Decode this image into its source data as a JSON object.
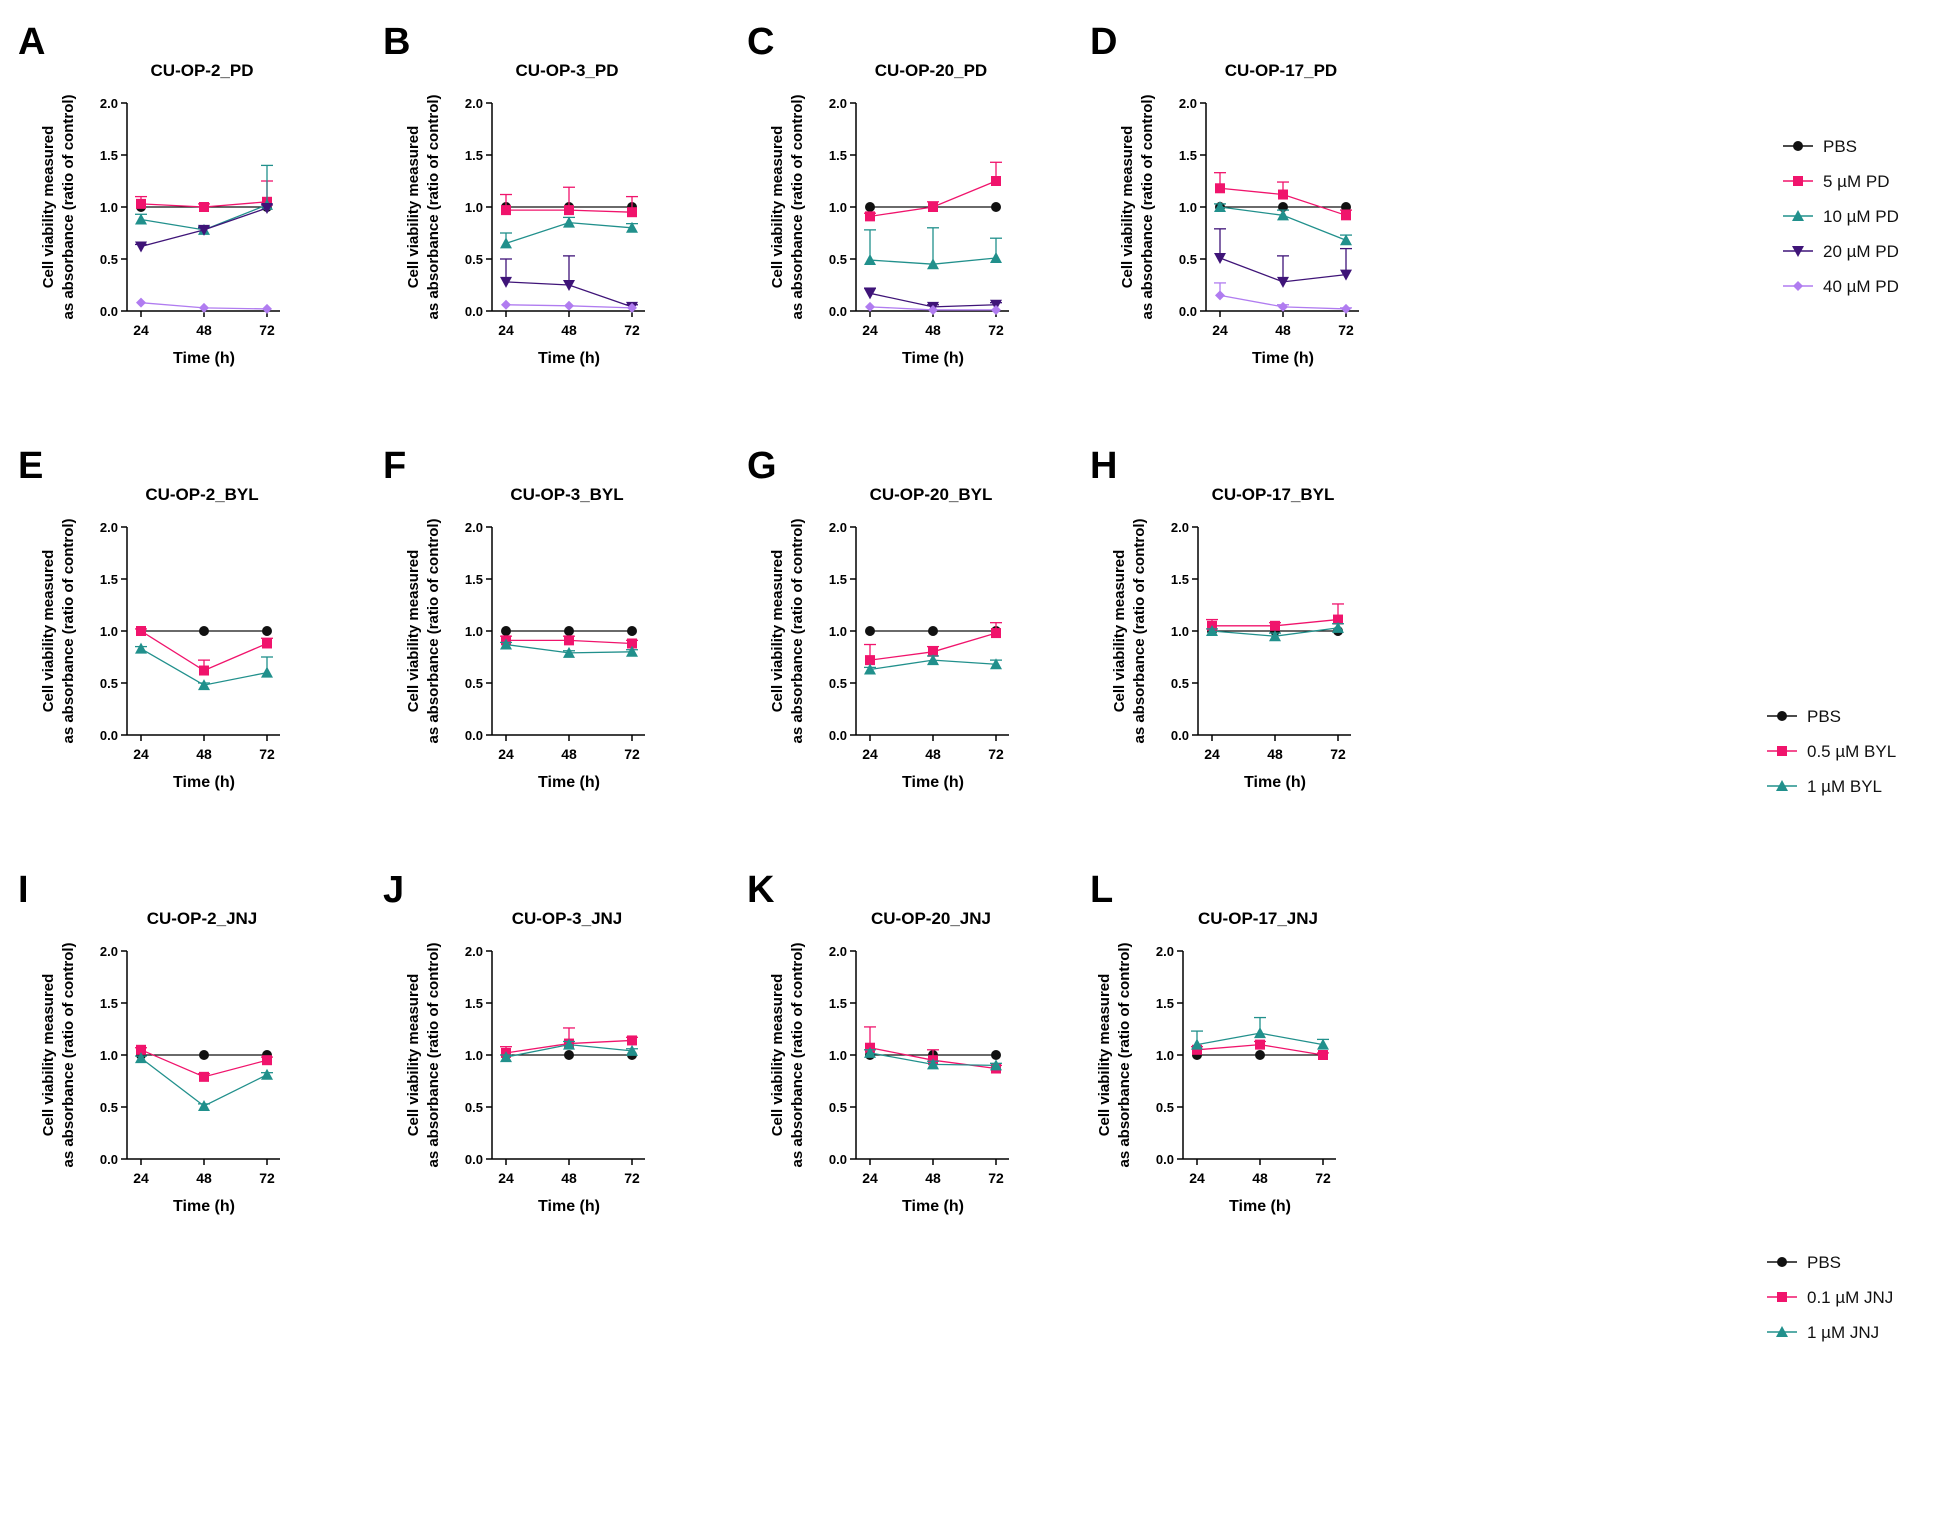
{
  "figure": {
    "y_axis_label_line1": "Cell viability measured",
    "y_axis_label_line2": "as absorbance (ratio of control)",
    "x_axis_label": "Time (h)"
  },
  "colors": {
    "PBS": "#111111",
    "pink": "#f0146c",
    "teal": "#21908c",
    "purple": "#3f1478",
    "lavender": "#b07cf0"
  },
  "legends": [
    {
      "row": 0,
      "items": [
        {
          "label": "PBS",
          "color": "#111111",
          "marker": "circle"
        },
        {
          "label": "5 µM PD",
          "color": "#f0146c",
          "marker": "square"
        },
        {
          "label": "10 µM PD",
          "color": "#21908c",
          "marker": "triangle"
        },
        {
          "label": "20 µM PD",
          "color": "#3f1478",
          "marker": "triangle-down"
        },
        {
          "label": "40 µM PD",
          "color": "#b07cf0",
          "marker": "diamond"
        }
      ]
    },
    {
      "row": 1,
      "items": [
        {
          "label": "PBS",
          "color": "#111111",
          "marker": "circle"
        },
        {
          "label": "0.5 µM BYL",
          "color": "#f0146c",
          "marker": "square"
        },
        {
          "label": "1 µM BYL",
          "color": "#21908c",
          "marker": "triangle"
        }
      ]
    },
    {
      "row": 2,
      "items": [
        {
          "label": "PBS",
          "color": "#111111",
          "marker": "circle"
        },
        {
          "label": "0.1 µM JNJ",
          "color": "#f0146c",
          "marker": "square"
        },
        {
          "label": "1 µM JNJ",
          "color": "#21908c",
          "marker": "triangle"
        }
      ]
    }
  ],
  "chart_data": [
    {
      "panel": "A",
      "type": "line",
      "title": "CU-OP-2_PD",
      "categories": [
        "24",
        "48",
        "72"
      ],
      "xlabel": "Time (h)",
      "ylabel": "Cell viability measured as absorbance (ratio of control)",
      "ylim": [
        0,
        2.0
      ],
      "yticks": [
        "0.0",
        "0.5",
        "1.0",
        "1.5",
        "2.0"
      ],
      "series": [
        {
          "name": "PBS",
          "values": [
            1.0,
            1.0,
            1.0
          ],
          "err": [
            0,
            0,
            0
          ]
        },
        {
          "name": "5 µM PD",
          "values": [
            1.03,
            1.0,
            1.05
          ],
          "err": [
            0.07,
            0.03,
            0.2
          ]
        },
        {
          "name": "10 µM PD",
          "values": [
            0.88,
            0.78,
            1.02
          ],
          "err": [
            0.05,
            0.03,
            0.38
          ]
        },
        {
          "name": "20 µM PD",
          "values": [
            0.62,
            0.78,
            0.99
          ],
          "err": [
            0.02,
            0.02,
            0.03
          ]
        },
        {
          "name": "40 µM PD",
          "values": [
            0.08,
            0.03,
            0.02
          ],
          "err": [
            0,
            0,
            0
          ]
        }
      ]
    },
    {
      "panel": "B",
      "type": "line",
      "title": "CU-OP-3_PD",
      "categories": [
        "24",
        "48",
        "72"
      ],
      "xlabel": "Time (h)",
      "ylabel": "Cell viability measured as absorbance (ratio of control)",
      "ylim": [
        0,
        2.0
      ],
      "yticks": [
        "0.0",
        "0.5",
        "1.0",
        "1.5",
        "2.0"
      ],
      "series": [
        {
          "name": "PBS",
          "values": [
            1.0,
            1.0,
            1.0
          ],
          "err": [
            0,
            0,
            0
          ]
        },
        {
          "name": "5 µM PD",
          "values": [
            0.97,
            0.97,
            0.95
          ],
          "err": [
            0.15,
            0.22,
            0.15
          ]
        },
        {
          "name": "10 µM PD",
          "values": [
            0.65,
            0.85,
            0.8
          ],
          "err": [
            0.1,
            0.05,
            0.04
          ]
        },
        {
          "name": "20 µM PD",
          "values": [
            0.28,
            0.25,
            0.04
          ],
          "err": [
            0.22,
            0.28,
            0.02
          ]
        },
        {
          "name": "40 µM PD",
          "values": [
            0.06,
            0.05,
            0.03
          ],
          "err": [
            0,
            0,
            0
          ]
        }
      ]
    },
    {
      "panel": "C",
      "type": "line",
      "title": "CU-OP-20_PD",
      "categories": [
        "24",
        "48",
        "72"
      ],
      "xlabel": "Time (h)",
      "ylabel": "Cell viability measured as absorbance (ratio of control)",
      "ylim": [
        0,
        2.0
      ],
      "yticks": [
        "0.0",
        "0.5",
        "1.0",
        "1.5",
        "2.0"
      ],
      "series": [
        {
          "name": "PBS",
          "values": [
            1.0,
            1.0,
            1.0
          ],
          "err": [
            0,
            0,
            0
          ]
        },
        {
          "name": "5 µM PD",
          "values": [
            0.91,
            1.0,
            1.25
          ],
          "err": [
            0.03,
            0.05,
            0.18
          ]
        },
        {
          "name": "10 µM PD",
          "values": [
            0.49,
            0.45,
            0.51
          ],
          "err": [
            0.29,
            0.35,
            0.19
          ]
        },
        {
          "name": "20 µM PD",
          "values": [
            0.17,
            0.04,
            0.06
          ],
          "err": [
            0.05,
            0.02,
            0.02
          ]
        },
        {
          "name": "40 µM PD",
          "values": [
            0.04,
            0.01,
            0.01
          ],
          "err": [
            0,
            0,
            0
          ]
        }
      ]
    },
    {
      "panel": "D",
      "type": "line",
      "title": "CU-OP-17_PD",
      "categories": [
        "24",
        "48",
        "72"
      ],
      "xlabel": "Time (h)",
      "ylabel": "Cell viability measured as absorbance (ratio of control)",
      "ylim": [
        0,
        2.0
      ],
      "yticks": [
        "0.0",
        "0.5",
        "1.0",
        "1.5",
        "2.0"
      ],
      "series": [
        {
          "name": "PBS",
          "values": [
            1.0,
            1.0,
            1.0
          ],
          "err": [
            0,
            0,
            0
          ]
        },
        {
          "name": "5 µM PD",
          "values": [
            1.18,
            1.12,
            0.92
          ],
          "err": [
            0.15,
            0.12,
            0.05
          ]
        },
        {
          "name": "10 µM PD",
          "values": [
            1.0,
            0.92,
            0.68
          ],
          "err": [
            0.03,
            0.05,
            0.05
          ]
        },
        {
          "name": "20 µM PD",
          "values": [
            0.51,
            0.28,
            0.35
          ],
          "err": [
            0.28,
            0.25,
            0.25
          ]
        },
        {
          "name": "40 µM PD",
          "values": [
            0.15,
            0.04,
            0.02
          ],
          "err": [
            0.12,
            0.02,
            0.01
          ]
        }
      ]
    },
    {
      "panel": "E",
      "type": "line",
      "title": "CU-OP-2_BYL",
      "categories": [
        "24",
        "48",
        "72"
      ],
      "xlabel": "Time (h)",
      "ylabel": "Cell viability measured as absorbance (ratio of control)",
      "ylim": [
        0,
        2.0
      ],
      "yticks": [
        "0.0",
        "0.5",
        "1.0",
        "1.5",
        "2.0"
      ],
      "series": [
        {
          "name": "PBS",
          "values": [
            1.0,
            1.0,
            1.0
          ],
          "err": [
            0,
            0,
            0
          ]
        },
        {
          "name": "0.5 µM BYL",
          "values": [
            1.0,
            0.62,
            0.88
          ],
          "err": [
            0.02,
            0.1,
            0.05
          ]
        },
        {
          "name": "1 µM BYL",
          "values": [
            0.83,
            0.48,
            0.6
          ],
          "err": [
            0.02,
            0.02,
            0.15
          ]
        }
      ]
    },
    {
      "panel": "F",
      "type": "line",
      "title": "CU-OP-3_BYL",
      "categories": [
        "24",
        "48",
        "72"
      ],
      "xlabel": "Time (h)",
      "ylabel": "Cell viability measured as absorbance (ratio of control)",
      "ylim": [
        0,
        2.0
      ],
      "yticks": [
        "0.0",
        "0.5",
        "1.0",
        "1.5",
        "2.0"
      ],
      "series": [
        {
          "name": "PBS",
          "values": [
            1.0,
            1.0,
            1.0
          ],
          "err": [
            0,
            0,
            0
          ]
        },
        {
          "name": "0.5 µM BYL",
          "values": [
            0.91,
            0.91,
            0.88
          ],
          "err": [
            0.04,
            0.04,
            0.03
          ]
        },
        {
          "name": "1 µM BYL",
          "values": [
            0.87,
            0.79,
            0.8
          ],
          "err": [
            0.02,
            0.02,
            0.02
          ]
        }
      ]
    },
    {
      "panel": "G",
      "type": "line",
      "title": "CU-OP-20_BYL",
      "categories": [
        "24",
        "48",
        "72"
      ],
      "xlabel": "Time (h)",
      "ylabel": "Cell viability measured as absorbance (ratio of control)",
      "ylim": [
        0,
        2.0
      ],
      "yticks": [
        "0.0",
        "0.5",
        "1.0",
        "1.5",
        "2.0"
      ],
      "series": [
        {
          "name": "PBS",
          "values": [
            1.0,
            1.0,
            1.0
          ],
          "err": [
            0,
            0,
            0
          ]
        },
        {
          "name": "0.5 µM BYL",
          "values": [
            0.72,
            0.8,
            0.98
          ],
          "err": [
            0.15,
            0.05,
            0.1
          ]
        },
        {
          "name": "1 µM BYL",
          "values": [
            0.63,
            0.72,
            0.68
          ],
          "err": [
            0.02,
            0.04,
            0.04
          ]
        }
      ]
    },
    {
      "panel": "H",
      "type": "line",
      "title": "CU-OP-17_BYL",
      "categories": [
        "24",
        "48",
        "72"
      ],
      "xlabel": "Time (h)",
      "ylabel": "Cell viability measured as absorbance (ratio of control)",
      "ylim": [
        0,
        2.0
      ],
      "yticks": [
        "0.0",
        "0.5",
        "1.0",
        "1.5",
        "2.0"
      ],
      "series": [
        {
          "name": "PBS",
          "values": [
            1.0,
            1.0,
            1.0
          ],
          "err": [
            0,
            0,
            0
          ]
        },
        {
          "name": "0.5 µM BYL",
          "values": [
            1.05,
            1.05,
            1.11
          ],
          "err": [
            0.06,
            0.03,
            0.15
          ]
        },
        {
          "name": "1 µM BYL",
          "values": [
            1.0,
            0.95,
            1.03
          ],
          "err": [
            0.02,
            0.03,
            0.04
          ]
        }
      ]
    },
    {
      "panel": "I",
      "type": "line",
      "title": "CU-OP-2_JNJ",
      "categories": [
        "24",
        "48",
        "72"
      ],
      "xlabel": "Time (h)",
      "ylabel": "Cell viability measured as absorbance (ratio of control)",
      "ylim": [
        0,
        2.0
      ],
      "yticks": [
        "0.0",
        "0.5",
        "1.0",
        "1.5",
        "2.0"
      ],
      "series": [
        {
          "name": "PBS",
          "values": [
            1.0,
            1.0,
            1.0
          ],
          "err": [
            0,
            0,
            0
          ]
        },
        {
          "name": "0.1 µM JNJ",
          "values": [
            1.05,
            0.79,
            0.95
          ],
          "err": [
            0.02,
            0.03,
            0.03
          ]
        },
        {
          "name": "1 µM JNJ",
          "values": [
            0.97,
            0.51,
            0.81
          ],
          "err": [
            0.02,
            0.02,
            0.02
          ]
        }
      ]
    },
    {
      "panel": "J",
      "type": "line",
      "title": "CU-OP-3_JNJ",
      "categories": [
        "24",
        "48",
        "72"
      ],
      "xlabel": "Time (h)",
      "ylabel": "Cell viability measured as absorbance (ratio of control)",
      "ylim": [
        0,
        2.0
      ],
      "yticks": [
        "0.0",
        "0.5",
        "1.0",
        "1.5",
        "2.0"
      ],
      "series": [
        {
          "name": "PBS",
          "values": [
            1.0,
            1.0,
            1.0
          ],
          "err": [
            0,
            0,
            0
          ]
        },
        {
          "name": "0.1 µM JNJ",
          "values": [
            1.02,
            1.11,
            1.14
          ],
          "err": [
            0.06,
            0.15,
            0.03
          ]
        },
        {
          "name": "1 µM JNJ",
          "values": [
            0.98,
            1.1,
            1.04
          ],
          "err": [
            0.02,
            0.03,
            0.02
          ]
        }
      ]
    },
    {
      "panel": "K",
      "type": "line",
      "title": "CU-OP-20_JNJ",
      "categories": [
        "24",
        "48",
        "72"
      ],
      "xlabel": "Time (h)",
      "ylabel": "Cell viability measured as absorbance (ratio of control)",
      "ylim": [
        0,
        2.0
      ],
      "yticks": [
        "0.0",
        "0.5",
        "1.0",
        "1.5",
        "2.0"
      ],
      "series": [
        {
          "name": "PBS",
          "values": [
            1.0,
            1.0,
            1.0
          ],
          "err": [
            0,
            0,
            0
          ]
        },
        {
          "name": "0.1 µM JNJ",
          "values": [
            1.07,
            0.95,
            0.87
          ],
          "err": [
            0.2,
            0.1,
            0.03
          ]
        },
        {
          "name": "1 µM JNJ",
          "values": [
            1.02,
            0.91,
            0.9
          ],
          "err": [
            0.03,
            0.03,
            0.02
          ]
        }
      ]
    },
    {
      "panel": "L",
      "type": "line",
      "title": "CU-OP-17_JNJ",
      "categories": [
        "24",
        "48",
        "72"
      ],
      "xlabel": "Time (h)",
      "ylabel": "Cell viability measured as absorbance (ratio of control)",
      "ylim": [
        0,
        2.0
      ],
      "yticks": [
        "0.0",
        "0.5",
        "1.0",
        "1.5",
        "2.0"
      ],
      "series": [
        {
          "name": "PBS",
          "values": [
            1.0,
            1.0,
            1.0
          ],
          "err": [
            0,
            0,
            0
          ]
        },
        {
          "name": "0.1 µM JNJ",
          "values": [
            1.05,
            1.1,
            1.0
          ],
          "err": [
            0.03,
            0.03,
            0.02
          ]
        },
        {
          "name": "1 µM JNJ",
          "values": [
            1.1,
            1.21,
            1.1
          ],
          "err": [
            0.13,
            0.15,
            0.05
          ]
        }
      ]
    }
  ]
}
